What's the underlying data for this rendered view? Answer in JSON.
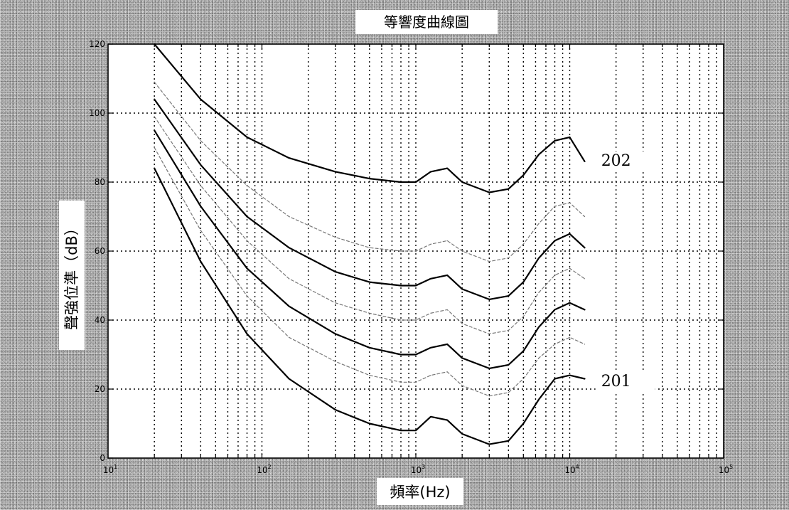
{
  "chart_data": {
    "type": "line",
    "title": "等響度曲線圖",
    "xlabel": "頻率(Hz)",
    "ylabel": "聲強位準（dB）",
    "xscale": "log",
    "xlim": [
      10,
      100000
    ],
    "ylim": [
      0,
      120
    ],
    "x_tick_labels": [
      {
        "base": "10",
        "exp": "1"
      },
      {
        "base": "10",
        "exp": "2"
      },
      {
        "base": "10",
        "exp": "3"
      },
      {
        "base": "10",
        "exp": "4"
      },
      {
        "base": "10",
        "exp": "5"
      }
    ],
    "y_ticks": [
      "0",
      "20",
      "40",
      "60",
      "80",
      "100",
      "120"
    ],
    "grid": true,
    "series": [
      {
        "style": "bold",
        "color": "#000000",
        "x": [
          20,
          40,
          80,
          150,
          300,
          500,
          800,
          1000,
          1250,
          1600,
          2000,
          3000,
          4000,
          5000,
          6300,
          8000,
          10000,
          12500
        ],
        "y": [
          84,
          57,
          36,
          23,
          14,
          10,
          8,
          8,
          12,
          11,
          7,
          4,
          5,
          10,
          17,
          23,
          24,
          23
        ]
      },
      {
        "style": "bold",
        "color": "#000000",
        "x": [
          20,
          40,
          80,
          150,
          300,
          500,
          800,
          1000,
          1250,
          1600,
          2000,
          3000,
          4000,
          5000,
          6300,
          8000,
          10000,
          12500
        ],
        "y": [
          95,
          73,
          55,
          44,
          36,
          32,
          30,
          30,
          32,
          33,
          29,
          26,
          27,
          31,
          38,
          43,
          45,
          43
        ]
      },
      {
        "style": "bold",
        "color": "#000000",
        "x": [
          20,
          40,
          80,
          150,
          300,
          500,
          800,
          1000,
          1250,
          1600,
          2000,
          3000,
          4000,
          5000,
          6300,
          8000,
          10000,
          12500
        ],
        "y": [
          104,
          85,
          70,
          61,
          54,
          51,
          50,
          50,
          52,
          53,
          49,
          46,
          47,
          51,
          58,
          63,
          65,
          61
        ]
      },
      {
        "style": "bold",
        "color": "#000000",
        "x": [
          20,
          40,
          80,
          150,
          300,
          500,
          800,
          1000,
          1250,
          1600,
          2000,
          3000,
          4000,
          5000,
          6300,
          8000,
          10000,
          12500
        ],
        "y": [
          120,
          104,
          93,
          87,
          83,
          81,
          80,
          80,
          83,
          84,
          80,
          77,
          78,
          82,
          88,
          92,
          93,
          86
        ]
      },
      {
        "style": "faint",
        "color": "#777777",
        "x": [
          20,
          40,
          80,
          150,
          300,
          500,
          800,
          1000,
          1250,
          1600,
          2000,
          3000,
          4000,
          5000,
          6300,
          8000,
          10000,
          12500
        ],
        "y": [
          90,
          66,
          47,
          35,
          28,
          24,
          22,
          22,
          24,
          25,
          21,
          18,
          19,
          23,
          29,
          33,
          35,
          33
        ]
      },
      {
        "style": "faint",
        "color": "#777777",
        "x": [
          20,
          40,
          80,
          150,
          300,
          500,
          800,
          1000,
          1250,
          1600,
          2000,
          3000,
          4000,
          5000,
          6300,
          8000,
          10000,
          12500
        ],
        "y": [
          99,
          79,
          63,
          52,
          45,
          42,
          40,
          40,
          42,
          43,
          39,
          36,
          37,
          41,
          48,
          53,
          55,
          52
        ]
      },
      {
        "style": "faint",
        "color": "#777777",
        "x": [
          20,
          40,
          80,
          150,
          300,
          500,
          800,
          1000,
          1250,
          1600,
          2000,
          3000,
          4000,
          5000,
          6300,
          8000,
          10000,
          12500
        ],
        "y": [
          109,
          92,
          79,
          70,
          64,
          61,
          60,
          60,
          62,
          63,
          60,
          57,
          58,
          62,
          68,
          73,
          74,
          70
        ]
      }
    ],
    "annotations": [
      {
        "text": "202",
        "x": 16000,
        "y": 85
      },
      {
        "text": "201",
        "x": 16000,
        "y": 21
      }
    ]
  }
}
